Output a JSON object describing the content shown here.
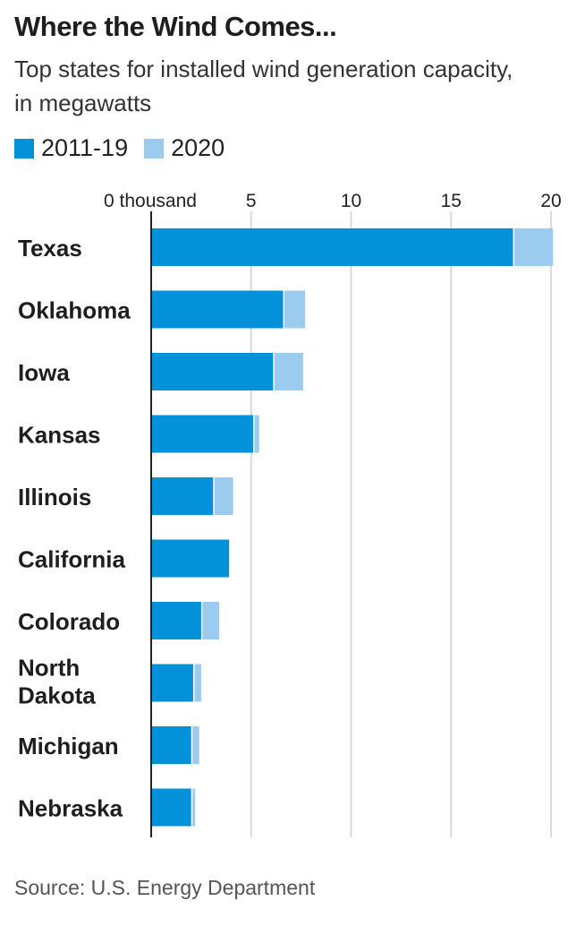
{
  "header": {
    "title": "Where the Wind Comes...",
    "subtitle": "Top states for installed wind generation capacity, in megawatts"
  },
  "colors": {
    "series_2011_19": "#0392d9",
    "series_2020": "#9ccbf0",
    "gridline": "#d9d9d9",
    "axis": "#222222"
  },
  "chart_data": {
    "type": "bar",
    "orientation": "horizontal",
    "stacked": true,
    "title": "Where the Wind Comes...",
    "subtitle": "Top states for installed wind generation capacity, in megawatts",
    "categories": [
      "Texas",
      "Oklahoma",
      "Iowa",
      "Kansas",
      "Illinois",
      "California",
      "Colorado",
      "North Dakota",
      "Michigan",
      "Nebraska"
    ],
    "series": [
      {
        "name": "2011-19",
        "values": [
          18.1,
          6.6,
          6.1,
          5.1,
          3.1,
          3.9,
          2.5,
          2.1,
          2.0,
          2.0
        ]
      },
      {
        "name": "2020",
        "values": [
          2.0,
          1.1,
          1.5,
          0.3,
          1.0,
          0.0,
          0.9,
          0.4,
          0.4,
          0.2
        ]
      }
    ],
    "xlim": [
      0,
      20
    ],
    "xticks": [
      0,
      5,
      10,
      15,
      20
    ],
    "xtick_labels": [
      "0 thousand",
      "5",
      "10",
      "15",
      "20"
    ],
    "grid": true,
    "legend_position": "top-left",
    "source": "Source: U.S. Energy Department"
  }
}
